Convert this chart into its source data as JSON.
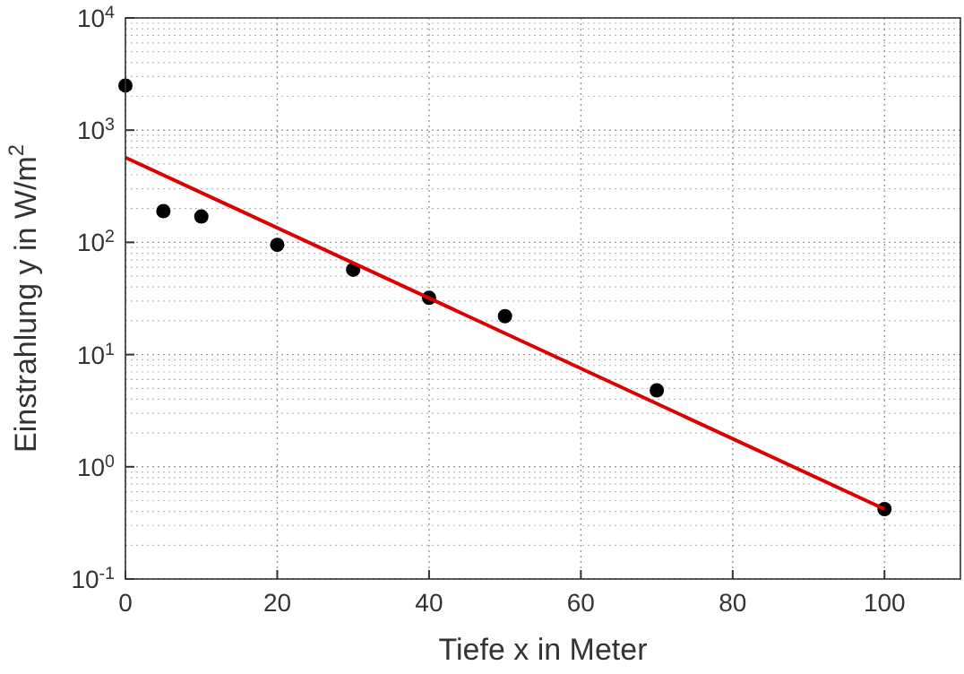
{
  "chart_data": {
    "type": "scatter",
    "xlabel": "Tiefe x in Meter",
    "ylabel": "Einstrahlung y in W/m$^{2}$",
    "log": "y",
    "grid": true,
    "xlim": [
      0,
      110
    ],
    "xticks": [
      0,
      20,
      40,
      60,
      80,
      100
    ],
    "ylim": [
      0.1,
      10000
    ],
    "yticks": [
      {
        "value": 0.1,
        "label": "10$^{-1}$"
      },
      {
        "value": 1,
        "label": "10$^{0}$"
      },
      {
        "value": 10,
        "label": "10$^{1}$"
      },
      {
        "value": 100,
        "label": "10$^{2}$"
      },
      {
        "value": 1000,
        "label": "10$^{3}$"
      },
      {
        "value": 10000,
        "label": "10$^{4}$"
      }
    ],
    "series": [
      {
        "type": "scatter",
        "color": "#000000",
        "marker": "circle",
        "x": [
          0,
          5,
          10,
          20,
          30,
          40,
          50,
          70,
          100
        ],
        "values": [
          2500,
          190,
          170,
          95,
          57,
          32,
          22,
          4.8,
          0.42
        ]
      },
      {
        "type": "line",
        "color": "#dd0000",
        "marker": "none",
        "x": [
          0,
          100
        ],
        "values": [
          570,
          0.42
        ]
      }
    ]
  }
}
